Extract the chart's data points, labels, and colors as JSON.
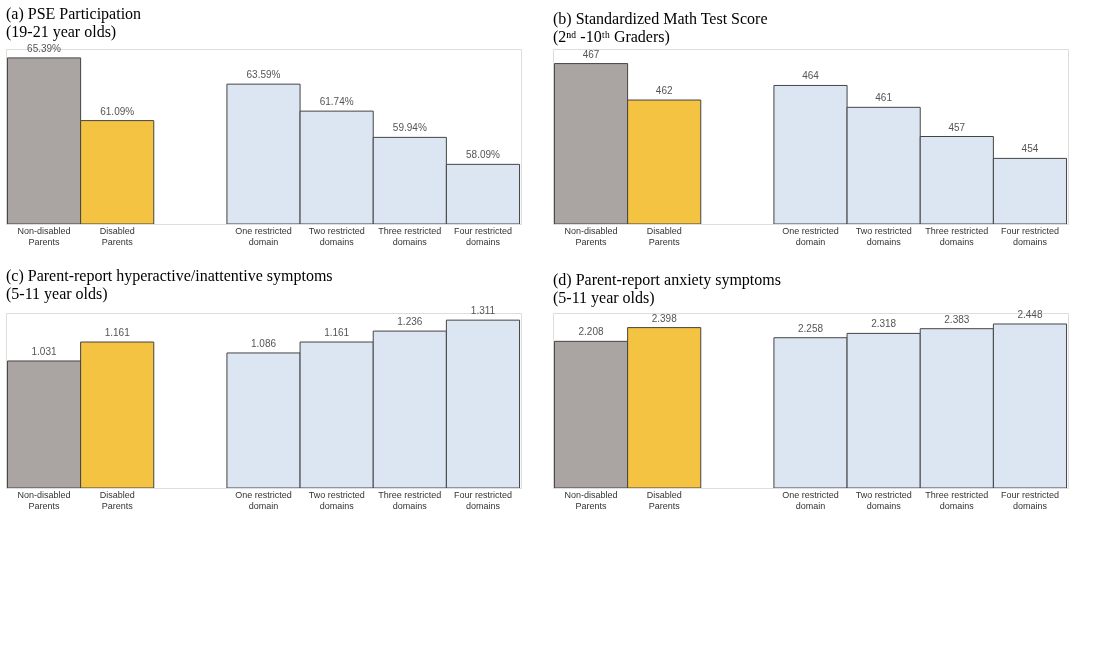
{
  "chart_data": [
    {
      "type": "bar",
      "title": "(a) PSE Participation",
      "subtitle": "(19-21 year olds)",
      "categories": [
        "Non-disabled\nParents",
        "Disabled\nParents",
        "One restricted\ndomain",
        "Two restricted\ndomains",
        "Three restricted\ndomains",
        "Four restricted\ndomains"
      ],
      "values": [
        65.39,
        61.09,
        63.59,
        61.74,
        59.94,
        58.09
      ],
      "value_labels": [
        "65.39%",
        "61.09%",
        "63.59%",
        "61.74%",
        "59.94%",
        "58.09%"
      ],
      "colors": [
        "#aaa5a2",
        "#f5c342",
        "#dce6f2",
        "#dce6f2",
        "#dce6f2",
        "#dce6f2"
      ],
      "ylim": [
        54,
        66
      ]
    },
    {
      "type": "bar",
      "title": "(b) Standardized Math Test Score",
      "subtitle": "(2ⁿᵈ -10ᵗʰ Graders)",
      "categories": [
        "Non-disabled\nParents",
        "Disabled\nParents",
        "One restricted\ndomain",
        "Two restricted\ndomains",
        "Three restricted\ndomains",
        "Four restricted\ndomains"
      ],
      "values": [
        467,
        462,
        464,
        461,
        457,
        454
      ],
      "data_labels": true,
      "colors": [
        "#aaa5a2",
        "#f5c342",
        "#dce6f2",
        "#dce6f2",
        "#dce6f2",
        "#dce6f2"
      ],
      "ylim": [
        445,
        469
      ]
    },
    {
      "type": "bar",
      "title": "(c) Parent-report hyperactive/inattentive symptoms",
      "subtitle": "(5-11 year olds)",
      "categories": [
        "Non-disabled\nParents",
        "Disabled\nParents",
        "One restricted\ndomain",
        "Two restricted\ndomains",
        "Three restricted\ndomains",
        "Four restricted\ndomains"
      ],
      "values": [
        1.031,
        1.161,
        1.086,
        1.161,
        1.236,
        1.311
      ],
      "data_labels": true,
      "colors": [
        "#aaa5a2",
        "#f5c342",
        "#dce6f2",
        "#dce6f2",
        "#dce6f2",
        "#dce6f2"
      ],
      "ylim": [
        0.16,
        1.36
      ]
    },
    {
      "type": "bar",
      "title": "(d) Parent-report anxiety symptoms",
      "subtitle": "(5-11 year olds)",
      "categories": [
        "Non-disabled\nParents",
        "Disabled\nParents",
        "One restricted\ndomain",
        "Two restricted\ndomains",
        "Three restricted\ndomains",
        "Four restricted\ndomains"
      ],
      "values": [
        2.208,
        2.398,
        2.258,
        2.318,
        2.383,
        2.448
      ],
      "data_labels": true,
      "colors": [
        "#aaa5a2",
        "#f5c342",
        "#dce6f2",
        "#dce6f2",
        "#dce6f2",
        "#dce6f2"
      ],
      "ylim": [
        0.18,
        2.6
      ]
    }
  ]
}
